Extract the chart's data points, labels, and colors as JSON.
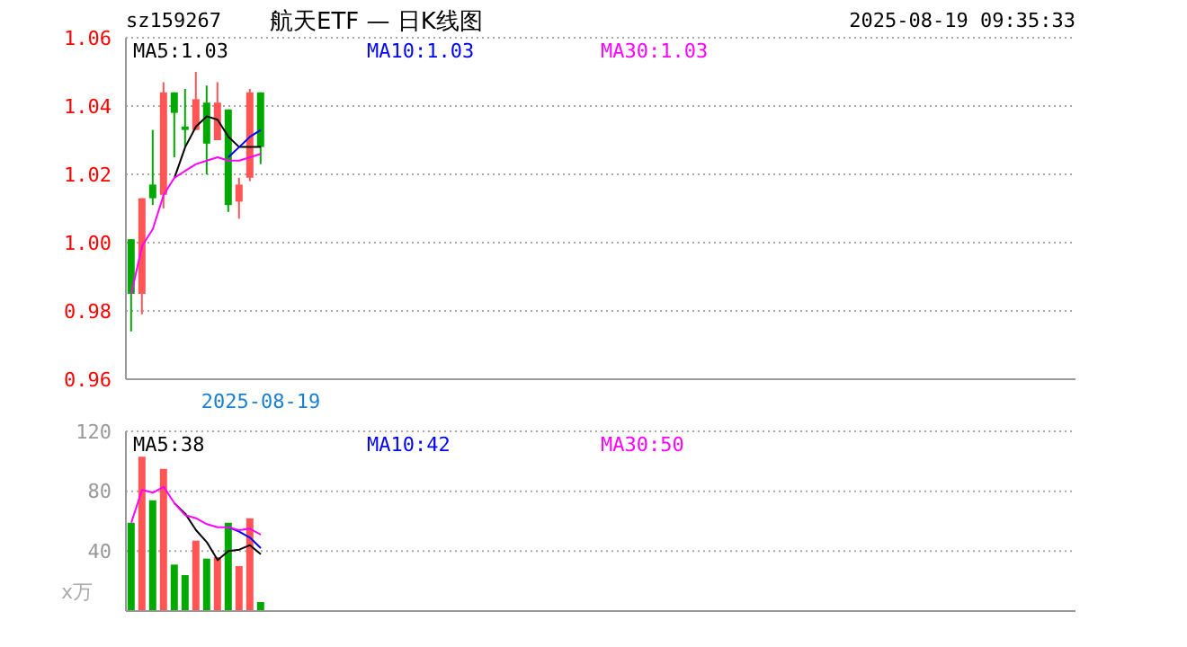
{
  "chart_data": [
    {
      "type": "candlestick",
      "title": "航天ETF — 日K线图",
      "annotations": [
        "sz159267",
        "2025-08-19 09:35:33"
      ],
      "categories": [
        null,
        null,
        null,
        null,
        null,
        null,
        null,
        null,
        null,
        null,
        null,
        null,
        "2025-08-19",
        null,
        null,
        null,
        null,
        null,
        null,
        null,
        null,
        null,
        null,
        null,
        null,
        null,
        null,
        null,
        null,
        null,
        null,
        null,
        null,
        null,
        null,
        null,
        null,
        null,
        null,
        null,
        null,
        null,
        null,
        null,
        null,
        null,
        null,
        null,
        null,
        null,
        null,
        null,
        null,
        null,
        null,
        null,
        null,
        null,
        null,
        null,
        null,
        null,
        null,
        null,
        null,
        null,
        null,
        null,
        null,
        null,
        null,
        null,
        null,
        null,
        null,
        null,
        null,
        null,
        null,
        null,
        null,
        null,
        null,
        null,
        null,
        null,
        null,
        null
      ],
      "series": [
        {
          "ohlc": [
            [
              1.001,
              1.001,
              0.974,
              0.985
            ],
            [
              0.985,
              1.013,
              0.979,
              1.013
            ],
            [
              1.017,
              1.033,
              1.011,
              1.013
            ],
            [
              1.014,
              1.047,
              1.01,
              1.044
            ],
            [
              1.044,
              1.044,
              1.025,
              1.038
            ],
            [
              1.034,
              1.045,
              1.028,
              1.033
            ],
            [
              1.033,
              1.05,
              1.033,
              1.042
            ],
            [
              1.041,
              1.046,
              1.02,
              1.029
            ],
            [
              1.03,
              1.047,
              1.03,
              1.041
            ],
            [
              1.039,
              1.039,
              1.009,
              1.011
            ],
            [
              1.012,
              1.019,
              1.007,
              1.017
            ],
            [
              1.019,
              1.045,
              1.018,
              1.044
            ],
            [
              1.044,
              1.044,
              1.023,
              1.028
            ],
            null,
            null,
            null,
            null,
            null,
            null,
            null,
            null,
            null,
            null,
            null,
            null,
            null,
            null,
            null,
            null,
            null,
            null,
            null,
            null,
            null,
            null,
            null,
            null,
            null,
            null,
            null,
            null,
            null,
            null,
            null,
            null,
            null,
            null,
            null,
            null,
            null,
            null,
            null,
            null,
            null,
            null,
            null,
            null,
            null,
            null,
            null,
            null,
            null,
            null,
            null,
            null,
            null,
            null,
            null,
            null,
            null,
            null,
            null,
            null,
            null,
            null,
            null,
            null,
            null,
            null,
            null,
            null,
            null,
            null,
            null,
            null,
            null,
            null,
            null
          ],
          "colors": [
            "#00a800",
            "#ff5555",
            "#00a800",
            "#ff5555",
            "#00a800",
            "#00a800",
            "#ff5555",
            "#00a800",
            "#ff5555",
            "#00a800",
            "#ff5555",
            "#ff5555",
            "#00a800",
            null,
            null,
            null,
            null,
            null,
            null,
            null,
            null,
            null,
            null,
            null,
            null,
            null,
            null,
            null,
            null,
            null,
            null,
            null,
            null,
            null,
            null,
            null,
            null,
            null,
            null,
            null,
            null,
            null,
            null,
            null,
            null,
            null,
            null,
            null,
            null,
            null,
            null,
            null,
            null,
            null,
            null,
            null,
            null,
            null,
            null,
            null,
            null,
            null,
            null,
            null,
            null,
            null,
            null,
            null,
            null,
            null,
            null,
            null,
            null,
            null,
            null,
            null,
            null,
            null,
            null,
            null,
            null,
            null,
            null,
            null,
            null,
            null,
            null,
            null
          ]
        },
        {
          "type": "line",
          "name": "MA5:1.03",
          "color": "#000000",
          "values": [
            null,
            null,
            null,
            null,
            1.019,
            1.028,
            1.034,
            1.037,
            1.036,
            1.031,
            1.028,
            1.028,
            1.028,
            null,
            null,
            null,
            null,
            null,
            null,
            null,
            null,
            null,
            null,
            null,
            null,
            null,
            null,
            null,
            null,
            null,
            null,
            null,
            null,
            null,
            null,
            null,
            null,
            null,
            null,
            null,
            null,
            null,
            null,
            null,
            null,
            null,
            null,
            null,
            null,
            null,
            null,
            null,
            null,
            null,
            null,
            null,
            null,
            null,
            null,
            null,
            null,
            null,
            null,
            null,
            null,
            null,
            null,
            null,
            null,
            null,
            null,
            null,
            null,
            null,
            null,
            null,
            null,
            null,
            null,
            null,
            null,
            null,
            null,
            null,
            null,
            null,
            null,
            null
          ]
        },
        {
          "type": "line",
          "name": "MA10:1.03",
          "color": "#0000ff",
          "values": [
            null,
            null,
            null,
            null,
            null,
            null,
            null,
            null,
            null,
            1.025,
            1.028,
            1.031,
            1.033,
            null,
            null,
            null,
            null,
            null,
            null,
            null,
            null,
            null,
            null,
            null,
            null,
            null,
            null,
            null,
            null,
            null,
            null,
            null,
            null,
            null,
            null,
            null,
            null,
            null,
            null,
            null,
            null,
            null,
            null,
            null,
            null,
            null,
            null,
            null,
            null,
            null,
            null,
            null,
            null,
            null,
            null,
            null,
            null,
            null,
            null,
            null,
            null,
            null,
            null,
            null,
            null,
            null,
            null,
            null,
            null,
            null,
            null,
            null,
            null,
            null,
            null,
            null,
            null,
            null,
            null,
            null,
            null,
            null,
            null,
            null,
            null,
            null,
            null,
            null
          ]
        },
        {
          "type": "line",
          "name": "MA30:1.03",
          "color": "#ff00ff",
          "values": [
            0.985,
            0.999,
            1.004,
            1.014,
            1.019,
            1.021,
            1.023,
            1.024,
            1.025,
            1.024,
            1.024,
            1.025,
            1.026,
            null,
            null,
            null,
            null,
            null,
            null,
            null,
            null,
            null,
            null,
            null,
            null,
            null,
            null,
            null,
            null,
            null,
            null,
            null,
            null,
            null,
            null,
            null,
            null,
            null,
            null,
            null,
            null,
            null,
            null,
            null,
            null,
            null,
            null,
            null,
            null,
            null,
            null,
            null,
            null,
            null,
            null,
            null,
            null,
            null,
            null,
            null,
            null,
            null,
            null,
            null,
            null,
            null,
            null,
            null,
            null,
            null,
            null,
            null,
            null,
            null,
            null,
            null,
            null,
            null,
            null,
            null,
            null,
            null,
            null,
            null,
            null,
            null,
            null,
            null
          ]
        }
      ],
      "ylim": [
        0.96,
        1.06
      ],
      "yticks": [
        {
          "value": 0.96,
          "label": "0.96"
        },
        {
          "value": 0.98,
          "label": "0.98"
        },
        {
          "value": 1,
          "label": "1.00"
        },
        {
          "value": 1.02,
          "label": "1.02"
        },
        {
          "value": 1.04,
          "label": "1.04"
        },
        {
          "value": 1.06,
          "label": "1.06"
        }
      ],
      "grid": "y",
      "legend": "top"
    },
    {
      "type": "bar",
      "ylabel": "x万",
      "categories": [
        null,
        null,
        null,
        null,
        null,
        null,
        null,
        null,
        null,
        null,
        null,
        null,
        null,
        null,
        null,
        null,
        null,
        null,
        null,
        null,
        null,
        null,
        null,
        null,
        null,
        null,
        null,
        null,
        null,
        null,
        null,
        null,
        null,
        null,
        null,
        null,
        null,
        null,
        null,
        null,
        null,
        null,
        null,
        null,
        null,
        null,
        null,
        null,
        null,
        null,
        null,
        null,
        null,
        null,
        null,
        null,
        null,
        null,
        null,
        null,
        null,
        null,
        null,
        null,
        null,
        null,
        null,
        null,
        null,
        null,
        null,
        null,
        null,
        null,
        null,
        null,
        null,
        null,
        null,
        null,
        null,
        null,
        null,
        null,
        null,
        null,
        null,
        null
      ],
      "series": [
        {
          "values": [
            59,
            103,
            74,
            95,
            31,
            24,
            47,
            35,
            36,
            59,
            30,
            62,
            6,
            null,
            null,
            null,
            null,
            null,
            null,
            null,
            null,
            null,
            null,
            null,
            null,
            null,
            null,
            null,
            null,
            null,
            null,
            null,
            null,
            null,
            null,
            null,
            null,
            null,
            null,
            null,
            null,
            null,
            null,
            null,
            null,
            null,
            null,
            null,
            null,
            null,
            null,
            null,
            null,
            null,
            null,
            null,
            null,
            null,
            null,
            null,
            null,
            null,
            null,
            null,
            null,
            null,
            null,
            null,
            null,
            null,
            null,
            null,
            null,
            null,
            null,
            null,
            null,
            null,
            null,
            null,
            null,
            null,
            null,
            null,
            null,
            null,
            null,
            null
          ],
          "colors": [
            "#00a800",
            "#ff5555",
            "#00a800",
            "#ff5555",
            "#00a800",
            "#00a800",
            "#ff5555",
            "#00a800",
            "#ff5555",
            "#00a800",
            "#ff5555",
            "#ff5555",
            "#00a800",
            null,
            null,
            null,
            null,
            null,
            null,
            null,
            null,
            null,
            null,
            null,
            null,
            null,
            null,
            null,
            null,
            null,
            null,
            null,
            null,
            null,
            null,
            null,
            null,
            null,
            null,
            null,
            null,
            null,
            null,
            null,
            null,
            null,
            null,
            null,
            null,
            null,
            null,
            null,
            null,
            null,
            null,
            null,
            null,
            null,
            null,
            null,
            null,
            null,
            null,
            null,
            null,
            null,
            null,
            null,
            null,
            null,
            null,
            null,
            null,
            null,
            null,
            null,
            null,
            null,
            null,
            null,
            null,
            null,
            null,
            null,
            null,
            null,
            null,
            null
          ]
        },
        {
          "type": "line",
          "name": "MA5:38",
          "color": "#000000",
          "values": [
            null,
            null,
            null,
            null,
            72,
            65,
            54,
            46,
            34,
            40,
            41,
            44,
            38,
            null,
            null,
            null,
            null,
            null,
            null,
            null,
            null,
            null,
            null,
            null,
            null,
            null,
            null,
            null,
            null,
            null,
            null,
            null,
            null,
            null,
            null,
            null,
            null,
            null,
            null,
            null,
            null,
            null,
            null,
            null,
            null,
            null,
            null,
            null,
            null,
            null,
            null,
            null,
            null,
            null,
            null,
            null,
            null,
            null,
            null,
            null,
            null,
            null,
            null,
            null,
            null,
            null,
            null,
            null,
            null,
            null,
            null,
            null,
            null,
            null,
            null,
            null,
            null,
            null,
            null,
            null,
            null,
            null,
            null,
            null,
            null,
            null,
            null,
            null
          ]
        },
        {
          "type": "line",
          "name": "MA10:42",
          "color": "#0000ff",
          "values": [
            null,
            null,
            null,
            null,
            null,
            null,
            null,
            null,
            null,
            56,
            53,
            49,
            42,
            null,
            null,
            null,
            null,
            null,
            null,
            null,
            null,
            null,
            null,
            null,
            null,
            null,
            null,
            null,
            null,
            null,
            null,
            null,
            null,
            null,
            null,
            null,
            null,
            null,
            null,
            null,
            null,
            null,
            null,
            null,
            null,
            null,
            null,
            null,
            null,
            null,
            null,
            null,
            null,
            null,
            null,
            null,
            null,
            null,
            null,
            null,
            null,
            null,
            null,
            null,
            null,
            null,
            null,
            null,
            null,
            null,
            null,
            null,
            null,
            null,
            null,
            null,
            null,
            null,
            null,
            null,
            null,
            null,
            null,
            null,
            null,
            null,
            null,
            null
          ]
        },
        {
          "type": "line",
          "name": "MA30:50",
          "color": "#ff00ff",
          "values": [
            59,
            81,
            79,
            83,
            72,
            64,
            62,
            58,
            56,
            56,
            54,
            55,
            51,
            null,
            null,
            null,
            null,
            null,
            null,
            null,
            null,
            null,
            null,
            null,
            null,
            null,
            null,
            null,
            null,
            null,
            null,
            null,
            null,
            null,
            null,
            null,
            null,
            null,
            null,
            null,
            null,
            null,
            null,
            null,
            null,
            null,
            null,
            null,
            null,
            null,
            null,
            null,
            null,
            null,
            null,
            null,
            null,
            null,
            null,
            null,
            null,
            null,
            null,
            null,
            null,
            null,
            null,
            null,
            null,
            null,
            null,
            null,
            null,
            null,
            null,
            null,
            null,
            null,
            null,
            null,
            null,
            null,
            null,
            null,
            null,
            null,
            null,
            null
          ]
        }
      ],
      "ylim": [
        0,
        120
      ],
      "yticks": [
        40,
        80,
        120
      ],
      "grid": "y",
      "legend": "top",
      "tick_labels": "y"
    }
  ]
}
